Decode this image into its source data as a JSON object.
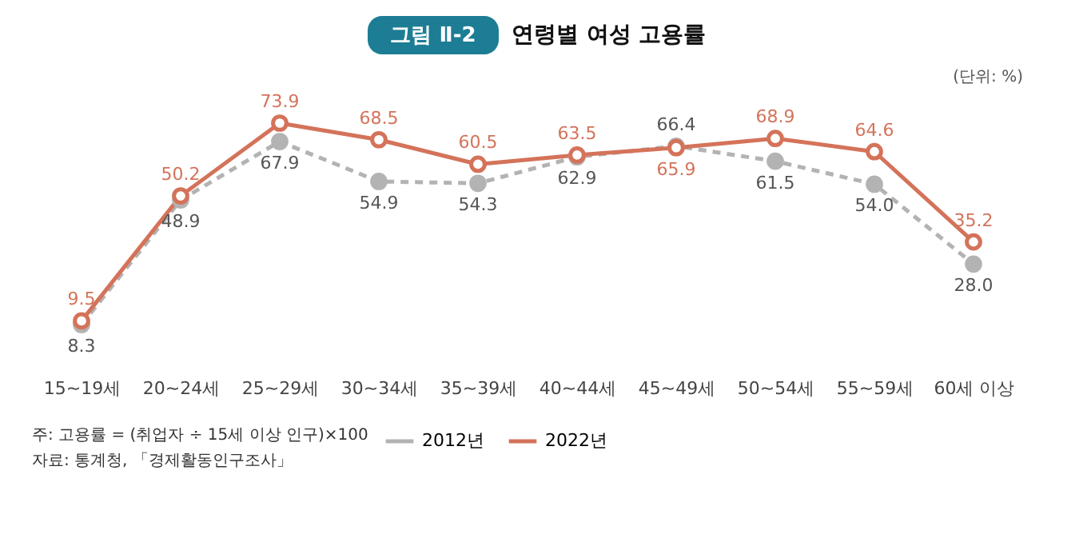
{
  "chart_data": {
    "type": "line",
    "title": "연령별 여성 고용률",
    "categories": [
      "15~19세",
      "20~24세",
      "25~29세",
      "30~34세",
      "35~39세",
      "40~44세",
      "45~49세",
      "50~54세",
      "55~59세",
      "60세 이상"
    ],
    "series": [
      {
        "name": "2012년",
        "color": "#b3b3b3",
        "line_style": "dashed",
        "marker": "circle",
        "values": [
          8.3,
          48.9,
          67.9,
          54.9,
          54.3,
          62.9,
          66.4,
          61.5,
          54.0,
          28.0
        ],
        "value_labels": [
          "8.3",
          "48.9",
          "67.9",
          "54.9",
          "54.3",
          "62.9",
          "66.4",
          "61.5",
          "54.0",
          "28.0"
        ]
      },
      {
        "name": "2022년",
        "color": "#d4735a",
        "line_style": "solid",
        "marker": "circle",
        "values": [
          9.5,
          50.2,
          73.9,
          68.5,
          60.5,
          63.5,
          65.9,
          68.9,
          64.6,
          35.2
        ]
      }
    ],
    "data_labels": true,
    "grid": false,
    "legend": "bottom",
    "annotations": [
      "그림 Ⅱ-2",
      "(단위: %)",
      "주: 고용률 = (취업자 ÷ 15세 이상 인구)×100",
      "자료: 통계청, 「경제활동인구조사」"
    ]
  }
}
